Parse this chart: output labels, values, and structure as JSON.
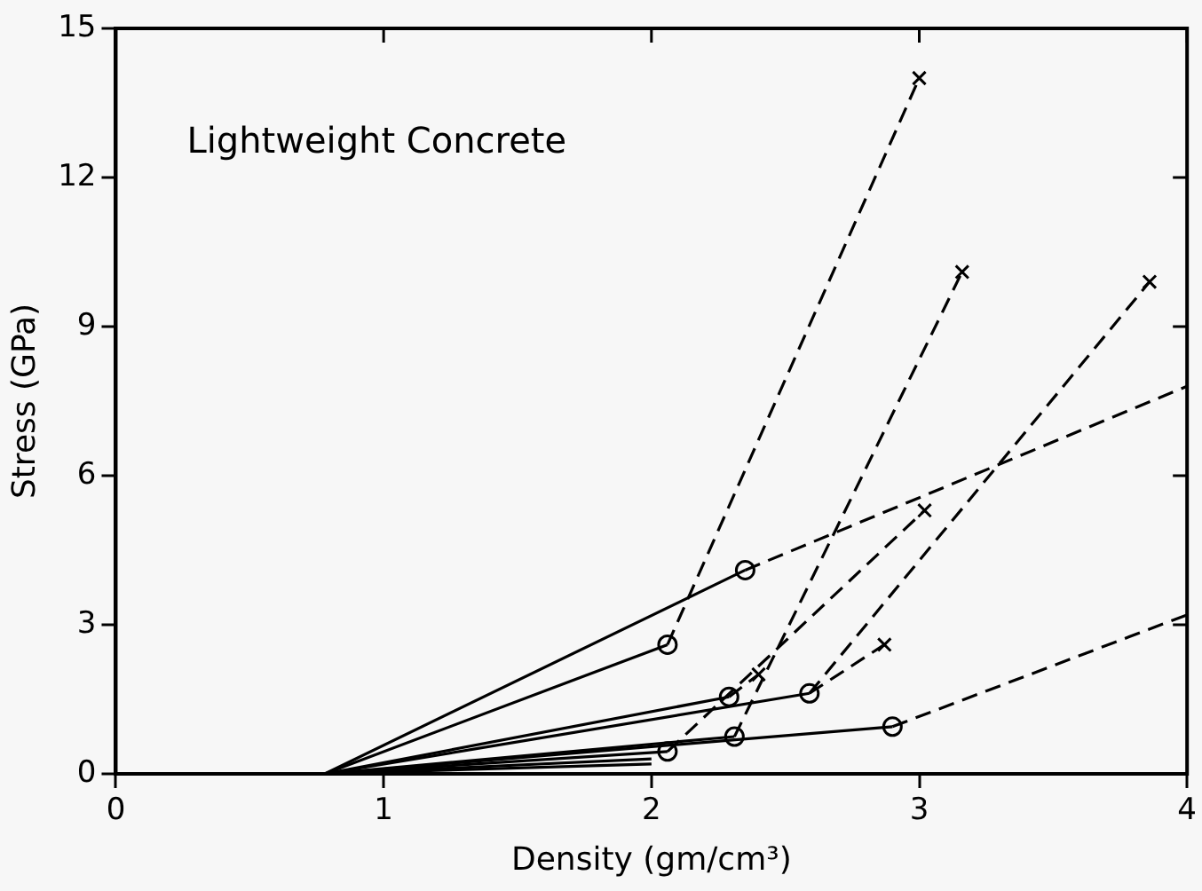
{
  "chart_data": {
    "type": "line",
    "title": "Lightweight Concrete",
    "xlabel": "Density (gm/cm³)",
    "ylabel": "Stress (GPa)",
    "xlim": [
      0,
      4
    ],
    "xticks": [
      0,
      1,
      2,
      3,
      4
    ],
    "ylim": [
      0,
      15
    ],
    "yticks": [
      0,
      3,
      6,
      9,
      12,
      15
    ],
    "grid": false,
    "legend": false,
    "series": [
      {
        "color": "#000000",
        "x": [
          0.78,
          2.35
        ],
        "values": [
          0,
          4.1
        ],
        "line_style": "solid",
        "marker": "none"
      },
      {
        "color": "#000000",
        "x": [
          0.78,
          2.06
        ],
        "values": [
          0,
          2.6
        ],
        "line_style": "solid",
        "marker": "none"
      },
      {
        "color": "#000000",
        "x": [
          0.78,
          2.29
        ],
        "values": [
          0,
          1.55
        ],
        "line_style": "solid",
        "marker": "none"
      },
      {
        "color": "#000000",
        "x": [
          0.78,
          2.59
        ],
        "values": [
          0,
          1.62
        ],
        "line_style": "solid",
        "marker": "none"
      },
      {
        "color": "#000000",
        "x": [
          0.78,
          2.31
        ],
        "values": [
          0,
          0.75
        ],
        "line_style": "solid",
        "marker": "none"
      },
      {
        "color": "#000000",
        "x": [
          0.78,
          2.06
        ],
        "values": [
          0,
          0.45
        ],
        "line_style": "solid",
        "marker": "none"
      },
      {
        "color": "#000000",
        "x": [
          0.78,
          2.9
        ],
        "values": [
          0,
          0.95
        ],
        "line_style": "solid",
        "marker": "none"
      },
      {
        "color": "#000000",
        "x": [
          0.78,
          2.0
        ],
        "values": [
          0,
          0.3
        ],
        "line_style": "solid",
        "marker": "none"
      },
      {
        "color": "#000000",
        "x": [
          0.78,
          2.0
        ],
        "values": [
          0,
          0.2
        ],
        "line_style": "solid",
        "marker": "none"
      },
      {
        "color": "#000000",
        "x": [
          2.35,
          4.0
        ],
        "values": [
          4.1,
          7.8
        ],
        "line_style": "dashed",
        "marker": "none"
      },
      {
        "color": "#000000",
        "x": [
          2.06,
          3.0
        ],
        "values": [
          2.6,
          14.0
        ],
        "line_style": "dashed",
        "marker": "none"
      },
      {
        "color": "#000000",
        "x": [
          2.29,
          2.4
        ],
        "values": [
          1.55,
          2.0
        ],
        "line_style": "dashed",
        "marker": "none"
      },
      {
        "color": "#000000",
        "x": [
          2.59,
          2.87
        ],
        "values": [
          1.62,
          2.6
        ],
        "line_style": "dashed",
        "marker": "none"
      },
      {
        "color": "#000000",
        "x": [
          2.31,
          3.16
        ],
        "values": [
          0.75,
          10.1
        ],
        "line_style": "dashed",
        "marker": "none"
      },
      {
        "color": "#000000",
        "x": [
          2.06,
          3.02
        ],
        "values": [
          0.45,
          5.3
        ],
        "line_style": "dashed",
        "marker": "none"
      },
      {
        "color": "#000000",
        "x": [
          2.59,
          3.86
        ],
        "values": [
          1.62,
          9.9
        ],
        "line_style": "dashed",
        "marker": "none"
      },
      {
        "color": "#000000",
        "x": [
          2.9,
          4.0
        ],
        "values": [
          0.95,
          3.2
        ],
        "line_style": "dashed",
        "marker": "none"
      },
      {
        "type": "scatter",
        "color": "#000000",
        "marker": "circle",
        "x": [
          2.35,
          2.06,
          2.29,
          2.59,
          2.31,
          2.06,
          2.9
        ],
        "values": [
          4.1,
          2.6,
          1.55,
          1.62,
          0.75,
          0.45,
          0.95
        ]
      },
      {
        "type": "scatter",
        "color": "#000000",
        "marker": "cross",
        "x": [
          3.0,
          3.16,
          3.86,
          3.02,
          2.87,
          2.4
        ],
        "values": [
          14.0,
          10.1,
          9.9,
          5.3,
          2.6,
          2.0
        ]
      }
    ]
  }
}
